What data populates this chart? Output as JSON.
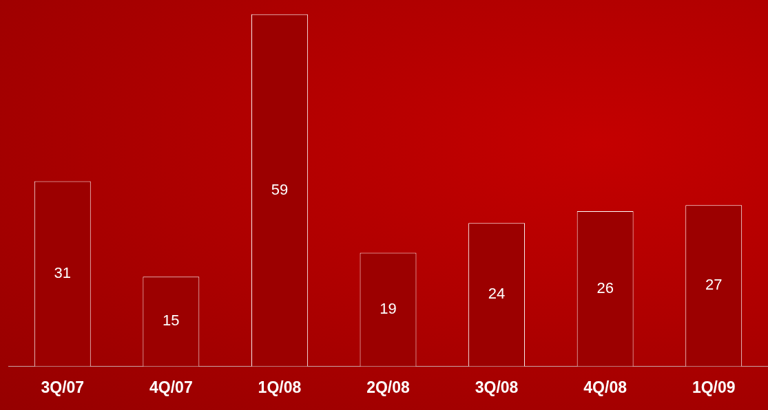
{
  "chart_data": {
    "type": "bar",
    "categories": [
      "3Q/07",
      "4Q/07",
      "1Q/08",
      "2Q/08",
      "3Q/08",
      "4Q/08",
      "1Q/09"
    ],
    "values": [
      31,
      15,
      59,
      19,
      24,
      26,
      27
    ],
    "color": "#9c0000",
    "data_labels": true,
    "grid": false,
    "legend": false,
    "tick_labels": "x"
  }
}
